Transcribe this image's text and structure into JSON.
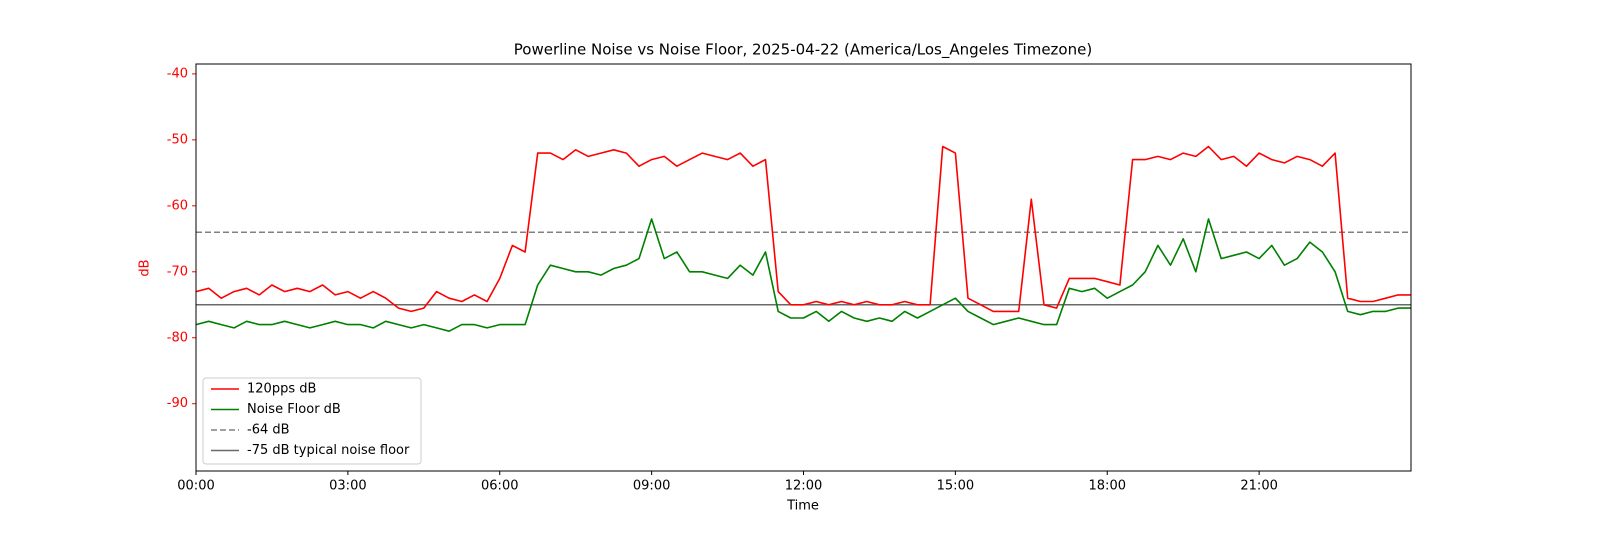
{
  "chart_data": {
    "type": "line",
    "title": "Powerline Noise vs Noise Floor, 2025-04-22 (America/Los_Angeles Timezone)",
    "x_label": "Time",
    "y_label": "dB",
    "y_axis_color": "#ff0000",
    "x": [
      "00:00",
      "00:15",
      "00:30",
      "00:45",
      "01:00",
      "01:15",
      "01:30",
      "01:45",
      "02:00",
      "02:15",
      "02:30",
      "02:45",
      "03:00",
      "03:15",
      "03:30",
      "03:45",
      "04:00",
      "04:15",
      "04:30",
      "04:45",
      "05:00",
      "05:15",
      "05:30",
      "05:45",
      "06:00",
      "06:15",
      "06:30",
      "06:45",
      "07:00",
      "07:15",
      "07:30",
      "07:45",
      "08:00",
      "08:15",
      "08:30",
      "08:45",
      "09:00",
      "09:15",
      "09:30",
      "09:45",
      "10:00",
      "10:15",
      "10:30",
      "10:45",
      "11:00",
      "11:15",
      "11:30",
      "11:45",
      "12:00",
      "12:15",
      "12:30",
      "12:45",
      "13:00",
      "13:15",
      "13:30",
      "13:45",
      "14:00",
      "14:15",
      "14:30",
      "14:45",
      "15:00",
      "15:15",
      "15:30",
      "15:45",
      "16:00",
      "16:15",
      "16:30",
      "16:45",
      "17:00",
      "17:15",
      "17:30",
      "17:45",
      "18:00",
      "18:15",
      "18:30",
      "18:45",
      "19:00",
      "19:15",
      "19:30",
      "19:45",
      "20:00",
      "20:15",
      "20:30",
      "20:45",
      "21:00",
      "21:15",
      "21:30",
      "21:45",
      "22:00",
      "22:15",
      "22:30",
      "22:45",
      "23:00",
      "23:15",
      "23:30",
      "23:45",
      "24:00"
    ],
    "series": [
      {
        "name": "120pps dB",
        "color": "#ff0000",
        "values": [
          -73,
          -72.5,
          -74,
          -73,
          -72.5,
          -73.5,
          -72,
          -73,
          -72.5,
          -73,
          -72,
          -73.5,
          -73,
          -74,
          -73,
          -74,
          -75.5,
          -76,
          -75.5,
          -73,
          -74,
          -74.5,
          -73.5,
          -74.5,
          -71,
          -66,
          -67,
          -52,
          -52,
          -53,
          -51.5,
          -52.5,
          -52,
          -51.5,
          -52,
          -54,
          -53,
          -52.5,
          -54,
          -53,
          -52,
          -52.5,
          -53,
          -52,
          -54,
          -53,
          -73,
          -75,
          -75,
          -74.5,
          -75,
          -74.5,
          -75,
          -74.5,
          -75,
          -75,
          -74.5,
          -75,
          -75,
          -51,
          -52,
          -74,
          -75,
          -76,
          -76,
          -76,
          -59,
          -75,
          -75.5,
          -71,
          -71,
          -71,
          -71.5,
          -72,
          -53,
          -53,
          -52.5,
          -53,
          -52,
          -52.5,
          -51,
          -53,
          -52.5,
          -54,
          -52,
          -53,
          -53.5,
          -52.5,
          -53,
          -54,
          -52,
          -74,
          -74.5,
          -74.5,
          -74,
          -73.5,
          -73.5
        ]
      },
      {
        "name": "Noise Floor dB",
        "color": "#008000",
        "values": [
          -78,
          -77.5,
          -78,
          -78.5,
          -77.5,
          -78,
          -78,
          -77.5,
          -78,
          -78.5,
          -78,
          -77.5,
          -78,
          -78,
          -78.5,
          -77.5,
          -78,
          -78.5,
          -78,
          -78.5,
          -79,
          -78,
          -78,
          -78.5,
          -78,
          -78,
          -78,
          -72,
          -69,
          -69.5,
          -70,
          -70,
          -70.5,
          -69.5,
          -69,
          -68,
          -62,
          -68,
          -67,
          -70,
          -70,
          -70.5,
          -71,
          -69,
          -70.5,
          -67,
          -76,
          -77,
          -77,
          -76,
          -77.5,
          -76,
          -77,
          -77.5,
          -77,
          -77.5,
          -76,
          -77,
          -76,
          -75,
          -74,
          -76,
          -77,
          -78,
          -77.5,
          -77,
          -77.5,
          -78,
          -78,
          -72.5,
          -73,
          -72.5,
          -74,
          -73,
          -72,
          -70,
          -66,
          -69,
          -65,
          -70,
          -62,
          -68,
          -67.5,
          -67,
          -68,
          -66,
          -69,
          -68,
          -65.5,
          -67,
          -70,
          -76,
          -76.5,
          -76,
          -76,
          -75.5,
          -75.5
        ]
      }
    ],
    "hlines": [
      {
        "name": "-64 dB",
        "value": -64,
        "color": "#808080",
        "dashed": true
      },
      {
        "name": "-75 dB typical noise floor",
        "value": -75,
        "color": "#696969",
        "dashed": false
      }
    ],
    "xlim": [
      "00:00",
      "24:00"
    ],
    "xticks": [
      "00:00",
      "03:00",
      "06:00",
      "09:00",
      "12:00",
      "15:00",
      "18:00",
      "21:00"
    ],
    "ylim": [
      -100.2,
      -38.5
    ],
    "yticks": [
      -90,
      -80,
      -70,
      -60,
      -50,
      -40
    ],
    "legend": "lower left"
  }
}
